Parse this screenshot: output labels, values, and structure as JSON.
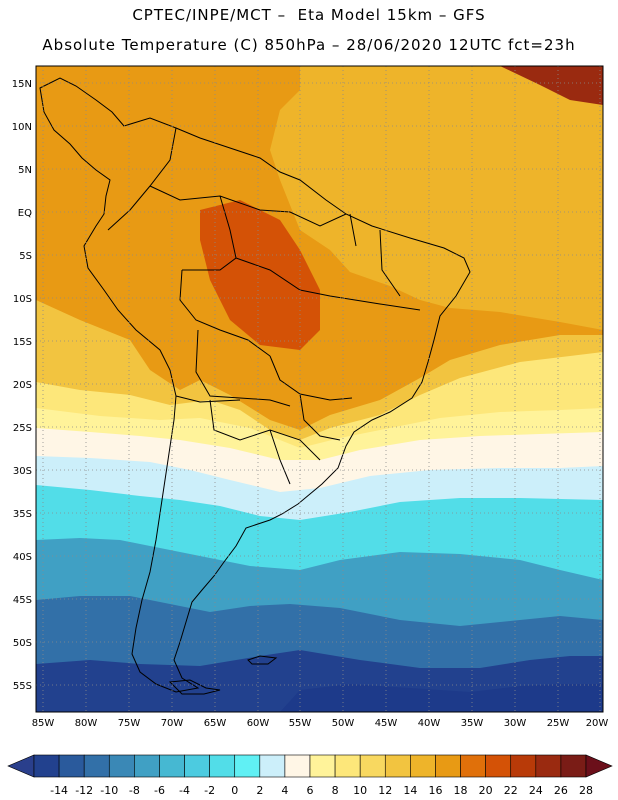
{
  "header": {
    "line1": "CPTEC/INPE/MCT –  Eta Model 15km – GFS",
    "line2": "Absolute Temperature (C) 850hPa – 28/06/2020 12UTC fct=23h"
  },
  "axes": {
    "lat_labels": [
      "15N",
      "10N",
      "5N",
      "EQ",
      "5S",
      "10S",
      "15S",
      "20S",
      "25S",
      "30S",
      "35S",
      "40S",
      "45S",
      "50S",
      "55S"
    ],
    "lon_labels": [
      "85W",
      "80W",
      "75W",
      "70W",
      "65W",
      "60W",
      "55W",
      "50W",
      "45W",
      "40W",
      "35W",
      "30W",
      "25W",
      "20W"
    ]
  },
  "colorbar": {
    "labels": [
      "-14",
      "-12",
      "-10",
      "-8",
      "-6",
      "-4",
      "-2",
      "0",
      "2",
      "4",
      "6",
      "8",
      "10",
      "12",
      "14",
      "16",
      "18",
      "20",
      "22",
      "24",
      "26",
      "28"
    ],
    "colors": {
      "under": "#2a3f8c",
      "over": "#6b0f1a",
      "bins": [
        "#22418e",
        "#2a5a9c",
        "#3270a8",
        "#3a88b6",
        "#40a0c4",
        "#46b8d2",
        "#4ccbe0",
        "#52dde8",
        "#60f0f4",
        "#cceffa",
        "#fff6e6",
        "#fff39a",
        "#fde77a",
        "#f8d860",
        "#f2c440",
        "#eeb42a",
        "#e89a14",
        "#e0700a",
        "#d45206",
        "#b83a08",
        "#9a2a10",
        "#7a1c16"
      ]
    }
  },
  "colors": {
    "hot": "#e89a14",
    "warm": "#eeb42a",
    "mild": "#f2c440",
    "yellow": "#fde77a",
    "pale": "#fff39a",
    "cream": "#fff6e6",
    "light_cyan": "#cceffa",
    "cyan": "#52dde8",
    "teal": "#40a0c4",
    "blue": "#3270a8",
    "deep_blue": "#22418e",
    "darkest": "#1d3a8a",
    "hot_core": "#d45206",
    "hot_extreme": "#9a2a10"
  }
}
